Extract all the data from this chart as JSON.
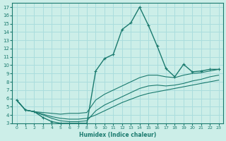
{
  "xlabel": "Humidex (Indice chaleur)",
  "ylabel": "",
  "bg_color": "#cceee8",
  "grid_color": "#aadddd",
  "line_color": "#1a7a6e",
  "xlim": [
    -0.5,
    23.5
  ],
  "ylim": [
    3,
    17.5
  ],
  "xticks": [
    0,
    1,
    2,
    3,
    4,
    5,
    6,
    7,
    8,
    9,
    10,
    11,
    12,
    13,
    14,
    15,
    16,
    17,
    18,
    19,
    20,
    21,
    22,
    23
  ],
  "yticks": [
    3,
    4,
    5,
    6,
    7,
    8,
    9,
    10,
    11,
    12,
    13,
    14,
    15,
    16,
    17
  ],
  "curve1_x": [
    0,
    1,
    2,
    3,
    4,
    5,
    6,
    7,
    8,
    9,
    10,
    11,
    12,
    13,
    14,
    15,
    16,
    17,
    18,
    19,
    20,
    21,
    22,
    23
  ],
  "curve1_y": [
    5.8,
    4.6,
    4.4,
    3.7,
    3.2,
    3.0,
    3.0,
    3.0,
    3.0,
    9.3,
    10.8,
    11.3,
    14.3,
    15.1,
    17.0,
    14.8,
    12.3,
    9.6,
    8.6,
    10.1,
    9.2,
    9.3,
    9.5,
    9.5
  ],
  "curve2_x": [
    0,
    1,
    2,
    3,
    4,
    5,
    6,
    7,
    8,
    9,
    10,
    11,
    12,
    13,
    14,
    15,
    16,
    17,
    18,
    19,
    20,
    21,
    22,
    23
  ],
  "curve2_y": [
    5.8,
    4.6,
    4.4,
    4.3,
    4.2,
    4.1,
    4.2,
    4.2,
    4.3,
    5.8,
    6.5,
    7.0,
    7.5,
    8.0,
    8.5,
    8.8,
    8.8,
    8.6,
    8.5,
    8.8,
    9.0,
    9.1,
    9.3,
    9.5
  ],
  "curve3_x": [
    0,
    1,
    2,
    3,
    4,
    5,
    6,
    7,
    8,
    9,
    10,
    11,
    12,
    13,
    14,
    15,
    16,
    17,
    18,
    19,
    20,
    21,
    22,
    23
  ],
  "curve3_y": [
    5.8,
    4.6,
    4.4,
    4.0,
    3.6,
    3.3,
    3.2,
    3.2,
    3.3,
    4.5,
    5.2,
    5.7,
    6.2,
    6.7,
    7.2,
    7.5,
    7.6,
    7.5,
    7.6,
    7.8,
    8.1,
    8.3,
    8.6,
    8.8
  ],
  "curve4_x": [
    0,
    1,
    2,
    3,
    4,
    5,
    6,
    7,
    8,
    9,
    10,
    11,
    12,
    13,
    14,
    15,
    16,
    17,
    18,
    19,
    20,
    21,
    22,
    23
  ],
  "curve4_y": [
    5.8,
    4.6,
    4.4,
    4.1,
    3.8,
    3.6,
    3.5,
    3.5,
    3.6,
    4.0,
    4.5,
    5.0,
    5.5,
    5.9,
    6.3,
    6.6,
    6.8,
    7.0,
    7.2,
    7.4,
    7.6,
    7.8,
    8.0,
    8.2
  ]
}
